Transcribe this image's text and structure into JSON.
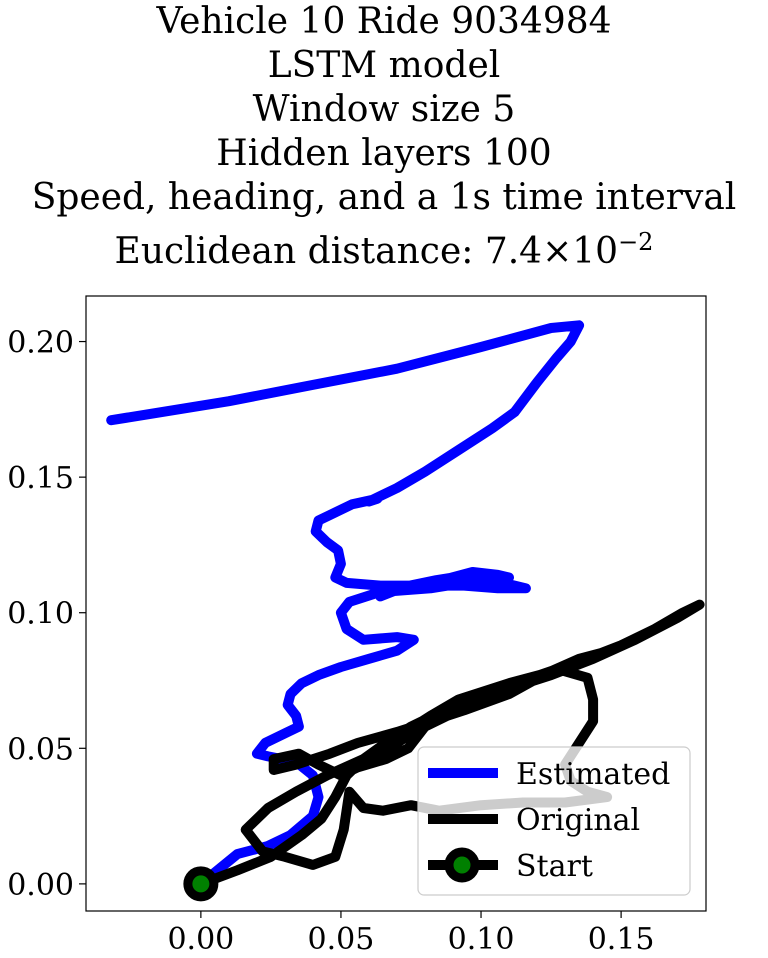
{
  "chart_data": {
    "type": "line",
    "title_lines": [
      "Vehicle 10 Ride 9034984",
      "LSTM model",
      "Window size 5",
      "Hidden layers 100",
      "Speed, heading, and a 1s time interval"
    ],
    "title_metric_text": "Euclidean distance: 7.4×10",
    "title_metric_exponent": "−2",
    "xlim": [
      -0.041,
      0.1803
    ],
    "ylim": [
      -0.01,
      0.2168
    ],
    "xticks": [
      {
        "value": 0.0,
        "label": "0.00"
      },
      {
        "value": 0.05,
        "label": "0.05"
      },
      {
        "value": 0.1,
        "label": "0.10"
      },
      {
        "value": 0.15,
        "label": "0.15"
      }
    ],
    "yticks": [
      {
        "value": 0.0,
        "label": "0.00"
      },
      {
        "value": 0.05,
        "label": "0.05"
      },
      {
        "value": 0.1,
        "label": "0.10"
      },
      {
        "value": 0.15,
        "label": "0.15"
      },
      {
        "value": 0.2,
        "label": "0.20"
      }
    ],
    "grid": false,
    "legend_position": "lower-right",
    "series": [
      {
        "name": "Estimated",
        "color": "#0000ff",
        "points": [
          [
            0.0,
            0.0
          ],
          [
            0.013,
            0.011
          ],
          [
            0.024,
            0.014
          ],
          [
            0.032,
            0.018
          ],
          [
            0.04,
            0.025
          ],
          [
            0.042,
            0.032
          ],
          [
            0.04,
            0.04
          ],
          [
            0.034,
            0.045
          ],
          [
            0.024,
            0.047
          ],
          [
            0.02,
            0.048
          ],
          [
            0.023,
            0.052
          ],
          [
            0.031,
            0.056
          ],
          [
            0.035,
            0.058
          ],
          [
            0.034,
            0.062
          ],
          [
            0.031,
            0.066
          ],
          [
            0.032,
            0.07
          ],
          [
            0.036,
            0.074
          ],
          [
            0.042,
            0.077
          ],
          [
            0.05,
            0.08
          ],
          [
            0.06,
            0.083
          ],
          [
            0.07,
            0.086
          ],
          [
            0.076,
            0.09
          ],
          [
            0.07,
            0.091
          ],
          [
            0.058,
            0.09
          ],
          [
            0.052,
            0.094
          ],
          [
            0.05,
            0.1
          ],
          [
            0.053,
            0.104
          ],
          [
            0.062,
            0.107
          ],
          [
            0.074,
            0.109
          ],
          [
            0.086,
            0.112
          ],
          [
            0.097,
            0.115
          ],
          [
            0.106,
            0.114
          ],
          [
            0.11,
            0.113
          ],
          [
            0.106,
            0.113
          ],
          [
            0.094,
            0.111
          ],
          [
            0.082,
            0.109
          ],
          [
            0.069,
            0.108
          ],
          [
            0.064,
            0.106
          ],
          [
            0.07,
            0.109
          ],
          [
            0.084,
            0.112
          ],
          [
            0.096,
            0.114
          ],
          [
            0.116,
            0.109
          ],
          [
            0.106,
            0.109
          ],
          [
            0.094,
            0.11
          ],
          [
            0.08,
            0.11
          ],
          [
            0.064,
            0.11
          ],
          [
            0.052,
            0.111
          ],
          [
            0.048,
            0.113
          ],
          [
            0.05,
            0.118
          ],
          [
            0.049,
            0.123
          ],
          [
            0.045,
            0.126
          ],
          [
            0.041,
            0.13
          ],
          [
            0.042,
            0.134
          ],
          [
            0.046,
            0.136
          ],
          [
            0.054,
            0.14
          ],
          [
            0.063,
            0.142
          ],
          [
            0.06,
            0.141
          ],
          [
            0.07,
            0.146
          ],
          [
            0.08,
            0.152
          ],
          [
            0.092,
            0.16
          ],
          [
            0.104,
            0.168
          ],
          [
            0.112,
            0.174
          ],
          [
            0.12,
            0.185
          ],
          [
            0.127,
            0.194
          ],
          [
            0.132,
            0.2
          ],
          [
            0.135,
            0.206
          ],
          [
            0.125,
            0.205
          ],
          [
            0.1,
            0.198
          ],
          [
            0.07,
            0.19
          ],
          [
            0.04,
            0.184
          ],
          [
            0.01,
            0.178
          ],
          [
            -0.02,
            0.173
          ],
          [
            -0.032,
            0.171
          ]
        ]
      },
      {
        "name": "Original",
        "color": "#000000",
        "points": [
          [
            0.0,
            0.0
          ],
          [
            0.013,
            0.005
          ],
          [
            0.025,
            0.01
          ],
          [
            0.036,
            0.018
          ],
          [
            0.043,
            0.024
          ],
          [
            0.048,
            0.032
          ],
          [
            0.052,
            0.04
          ],
          [
            0.058,
            0.046
          ],
          [
            0.066,
            0.052
          ],
          [
            0.075,
            0.058
          ],
          [
            0.087,
            0.064
          ],
          [
            0.102,
            0.07
          ],
          [
            0.118,
            0.076
          ],
          [
            0.135,
            0.082
          ],
          [
            0.15,
            0.088
          ],
          [
            0.162,
            0.094
          ],
          [
            0.172,
            0.1
          ],
          [
            0.178,
            0.103
          ],
          [
            0.17,
            0.098
          ],
          [
            0.155,
            0.09
          ],
          [
            0.14,
            0.083
          ],
          [
            0.125,
            0.077
          ],
          [
            0.11,
            0.072
          ],
          [
            0.094,
            0.066
          ],
          [
            0.082,
            0.062
          ],
          [
            0.076,
            0.058
          ],
          [
            0.082,
            0.062
          ],
          [
            0.092,
            0.068
          ],
          [
            0.11,
            0.074
          ],
          [
            0.128,
            0.079
          ],
          [
            0.138,
            0.076
          ],
          [
            0.14,
            0.068
          ],
          [
            0.14,
            0.06
          ],
          [
            0.135,
            0.052
          ],
          [
            0.13,
            0.044
          ],
          [
            0.132,
            0.038
          ],
          [
            0.138,
            0.034
          ],
          [
            0.145,
            0.032
          ],
          [
            0.13,
            0.03
          ],
          [
            0.115,
            0.03
          ],
          [
            0.1,
            0.029
          ],
          [
            0.085,
            0.027
          ],
          [
            0.075,
            0.029
          ],
          [
            0.065,
            0.027
          ],
          [
            0.058,
            0.028
          ],
          [
            0.053,
            0.034
          ],
          [
            0.051,
            0.02
          ],
          [
            0.048,
            0.01
          ],
          [
            0.04,
            0.007
          ],
          [
            0.03,
            0.01
          ],
          [
            0.022,
            0.012
          ],
          [
            0.016,
            0.02
          ],
          [
            0.024,
            0.028
          ],
          [
            0.034,
            0.034
          ],
          [
            0.045,
            0.04
          ],
          [
            0.058,
            0.046
          ],
          [
            0.07,
            0.052
          ],
          [
            0.082,
            0.06
          ],
          [
            0.095,
            0.066
          ],
          [
            0.11,
            0.07
          ],
          [
            0.116,
            0.074
          ],
          [
            0.104,
            0.07
          ],
          [
            0.092,
            0.064
          ],
          [
            0.08,
            0.058
          ],
          [
            0.074,
            0.05
          ],
          [
            0.066,
            0.046
          ],
          [
            0.056,
            0.043
          ],
          [
            0.05,
            0.04
          ],
          [
            0.042,
            0.044
          ],
          [
            0.035,
            0.048
          ],
          [
            0.026,
            0.046
          ],
          [
            0.026,
            0.042
          ],
          [
            0.034,
            0.044
          ],
          [
            0.046,
            0.048
          ],
          [
            0.056,
            0.052
          ],
          [
            0.07,
            0.056
          ],
          [
            0.082,
            0.06
          ],
          [
            0.094,
            0.064
          ],
          [
            0.11,
            0.07
          ],
          [
            0.124,
            0.078
          ],
          [
            0.135,
            0.083
          ],
          [
            0.146,
            0.086
          ]
        ]
      }
    ],
    "start_point": {
      "name": "Start",
      "x": 0.0,
      "y": 0.0,
      "marker_face_color": "#008000",
      "marker_edge_color": "#000000"
    }
  }
}
